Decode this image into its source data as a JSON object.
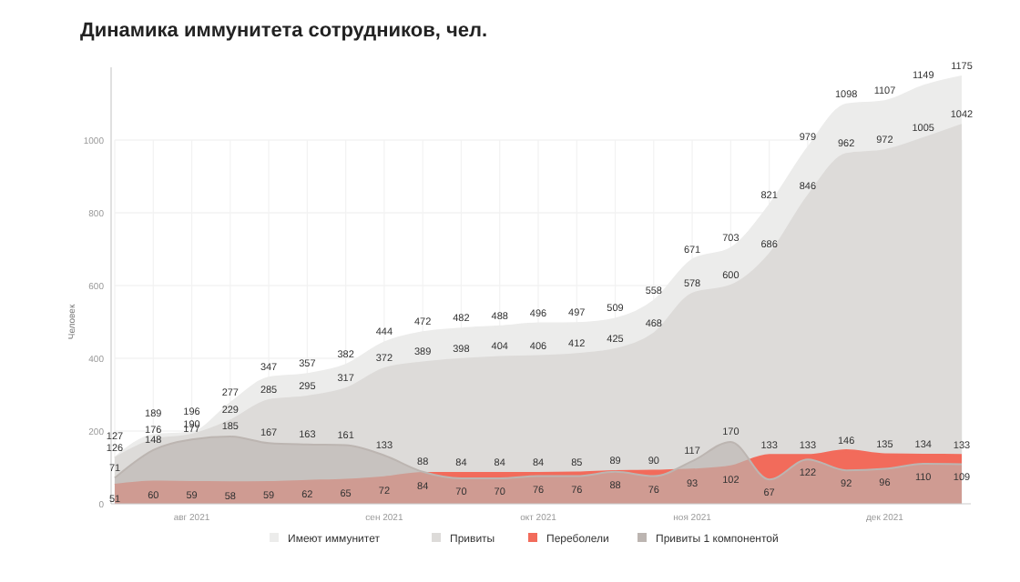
{
  "chart_data": {
    "type": "area",
    "title": "Динамика иммунитета сотрудников, чел.",
    "ylabel": "Человек",
    "categories": [
      null,
      null,
      "авг 2021",
      null,
      null,
      null,
      null,
      "сен 2021",
      null,
      null,
      null,
      "окт 2021",
      null,
      null,
      null,
      "ноя 2021",
      null,
      null,
      null,
      null,
      "дек 2021",
      null,
      null
    ],
    "series": [
      {
        "name": "Имеют иммунитет",
        "color": "#ececeb",
        "values": [
          127,
          189,
          196,
          277,
          347,
          357,
          382,
          444,
          472,
          482,
          488,
          496,
          497,
          509,
          558,
          671,
          703,
          821,
          979,
          1098,
          1107,
          1149,
          1175
        ]
      },
      {
        "name": "Привиты",
        "color": "#dddbd9",
        "values": [
          126,
          176,
          190,
          229,
          285,
          295,
          317,
          372,
          389,
          398,
          404,
          406,
          412,
          425,
          468,
          578,
          600,
          686,
          846,
          962,
          972,
          1005,
          1042
        ]
      },
      {
        "name": "Переболели",
        "color": "#f26b5b",
        "values": [
          51,
          60,
          59,
          58,
          59,
          62,
          65,
          72,
          84,
          84,
          84,
          84,
          85,
          89,
          90,
          93,
          102,
          133,
          133,
          146,
          135,
          134,
          133
        ]
      },
      {
        "name": "Привиты 1 компонентой",
        "color": "#bcb5b1",
        "values": [
          71,
          148,
          177,
          185,
          167,
          163,
          161,
          133,
          88,
          70,
          70,
          76,
          76,
          88,
          76,
          117,
          170,
          67,
          122,
          92,
          96,
          110,
          109
        ]
      }
    ],
    "ylim": [
      0,
      1200
    ],
    "yticks": [
      0,
      200,
      400,
      600,
      800,
      1000
    ],
    "grid": true,
    "data_labels": true,
    "legend": "bottom"
  }
}
